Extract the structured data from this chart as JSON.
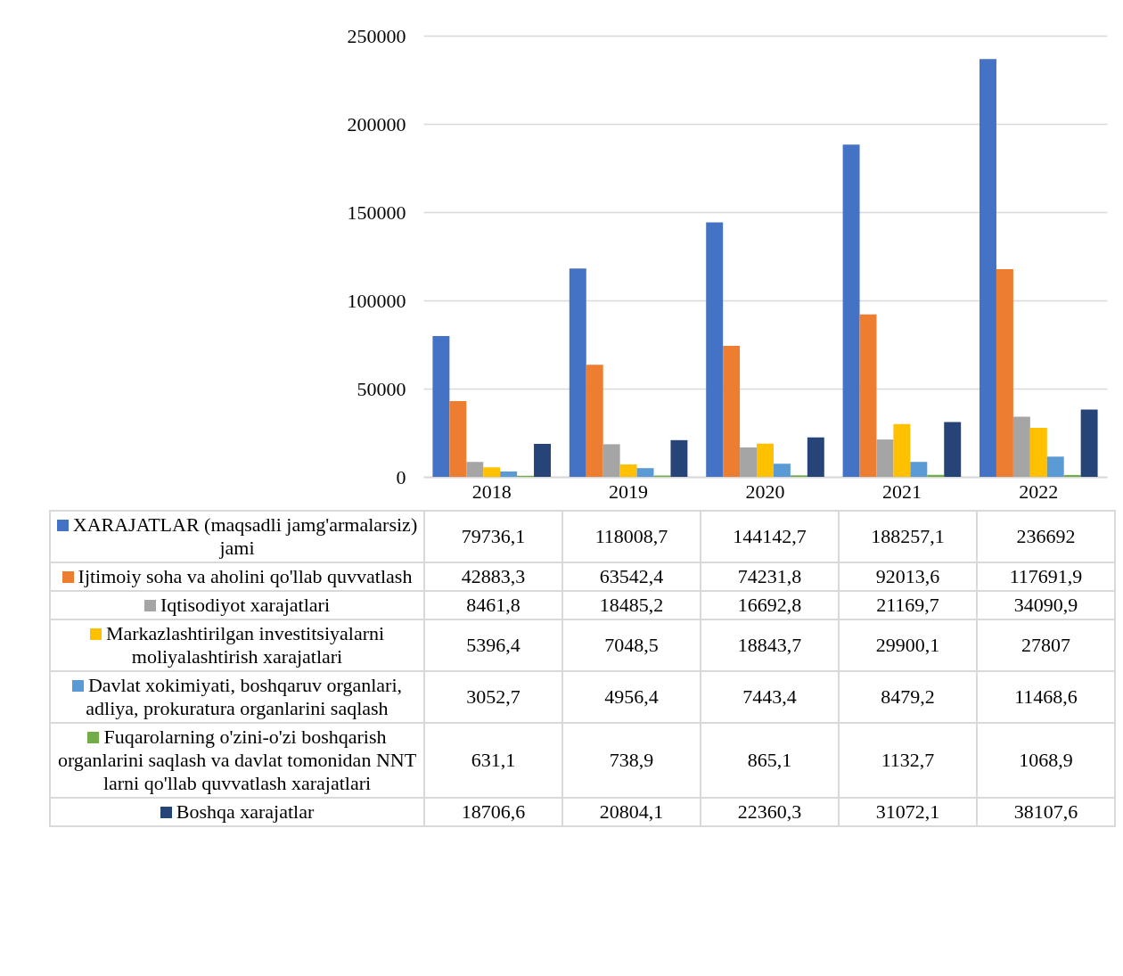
{
  "chart_data": {
    "type": "bar",
    "categories": [
      "2018",
      "2019",
      "2020",
      "2021",
      "2022"
    ],
    "ylim": [
      0,
      250000
    ],
    "yticks": [
      0,
      50000,
      100000,
      150000,
      200000,
      250000
    ],
    "grid": "y",
    "legend": "bottom",
    "series": [
      {
        "name": "XARAJATLAR (maqsadli jamg'armalarsiz) jami",
        "color": "#4472c4",
        "values": [
          79736.1,
          118008.7,
          144142.7,
          188257.1,
          236692
        ],
        "value_labels": [
          "79736,1",
          "118008,7",
          "144142,7",
          "188257,1",
          "236692"
        ]
      },
      {
        "name": "Ijtimoiy soha va aholini qo'llab quvvatlash",
        "color": "#ed7d31",
        "values": [
          42883.3,
          63542.4,
          74231.8,
          92013.6,
          117691.9
        ],
        "value_labels": [
          "42883,3",
          "63542,4",
          "74231,8",
          "92013,6",
          "117691,9"
        ]
      },
      {
        "name": "Iqtisodiyot xarajatlari",
        "color": "#a5a5a5",
        "values": [
          8461.8,
          18485.2,
          16692.8,
          21169.7,
          34090.9
        ],
        "value_labels": [
          "8461,8",
          "18485,2",
          "16692,8",
          "21169,7",
          "34090,9"
        ]
      },
      {
        "name": "Markazlashtirilgan investitsiyalarni moliyalashtirish xarajatlari",
        "color": "#ffc000",
        "values": [
          5396.4,
          7048.5,
          18843.7,
          29900.1,
          27807
        ],
        "value_labels": [
          "5396,4",
          "7048,5",
          "18843,7",
          "29900,1",
          "27807"
        ]
      },
      {
        "name": "Davlat xokimiyati, boshqaruv organlari, adliya, prokuratura organlarini saqlash",
        "color": "#5b9bd5",
        "values": [
          3052.7,
          4956.4,
          7443.4,
          8479.2,
          11468.6
        ],
        "value_labels": [
          "3052,7",
          "4956,4",
          "7443,4",
          "8479,2",
          "11468,6"
        ]
      },
      {
        "name": "Fuqarolarning o'zini-o'zi boshqarish organlarini saqlash va davlat tomonidan NNT larni qo'llab quvvatlash xarajatlari",
        "color": "#70ad47",
        "values": [
          631.1,
          738.9,
          865.1,
          1132.7,
          1068.9
        ],
        "value_labels": [
          "631,1",
          "738,9",
          "865,1",
          "1132,7",
          "1068,9"
        ]
      },
      {
        "name": "Boshqa xarajatlar",
        "color": "#264478",
        "values": [
          18706.6,
          20804.1,
          22360.3,
          31072.1,
          38107.6
        ],
        "value_labels": [
          "18706,6",
          "20804,1",
          "22360,3",
          "31072,1",
          "38107,6"
        ]
      }
    ]
  }
}
